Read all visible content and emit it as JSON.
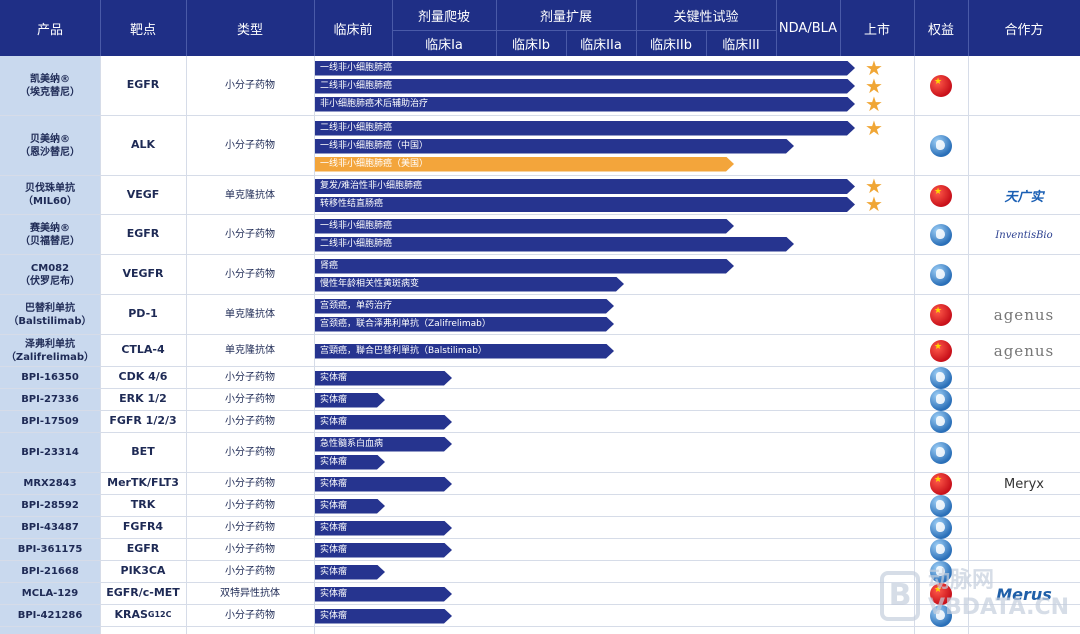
{
  "header": {
    "product": "产品",
    "target": "靶点",
    "type": "类型",
    "preclinical": "临床前",
    "dose_escalation": "剂量爬坡",
    "dose_expansion": "剂量扩展",
    "pivotal": "关键性试验",
    "phase_1a": "临床Ia",
    "phase_1b": "临床Ib",
    "phase_2a": "临床IIa",
    "phase_2b": "临床IIb",
    "phase_3": "临床III",
    "nda": "NDA/BLA",
    "launch": "上市",
    "rights": "权益",
    "partner": "合作方"
  },
  "rows": [
    {
      "product": "凯美纳®\n（埃克替尼）",
      "target": "EGFR",
      "type": "小分子药物",
      "bars": [
        {
          "label": "一线非小细胞肺癌",
          "stage": "launch"
        },
        {
          "label": "二线非小细胞肺癌",
          "stage": "launch"
        },
        {
          "label": "非小细胞肺癌术后辅助治疗",
          "stage": "launch"
        }
      ],
      "rights": "cn",
      "partner": ""
    },
    {
      "product": "贝美纳®\n（恩沙替尼）",
      "target": "ALK",
      "type": "小分子药物",
      "bars": [
        {
          "label": "二线非小细胞肺癌",
          "stage": "launch"
        },
        {
          "label": "一线非小细胞肺癌（中国）",
          "stage": "nda"
        },
        {
          "label": "一线非小细胞肺癌（美国）",
          "stage": "phase3",
          "color": "orange"
        }
      ],
      "rights": "global",
      "partner": ""
    },
    {
      "product": "贝伐珠单抗\n（MIL60）",
      "target": "VEGF",
      "type": "单克隆抗体",
      "bars": [
        {
          "label": "复发/难治性非小细胞肺癌",
          "stage": "launch"
        },
        {
          "label": "转移性结直肠癌",
          "stage": "launch"
        }
      ],
      "rights": "cn",
      "partner": "天广实"
    },
    {
      "product": "赛美纳®\n（贝福替尼）",
      "target": "EGFR",
      "type": "小分子药物",
      "bars": [
        {
          "label": "一线非小细胞肺癌",
          "stage": "phase3"
        },
        {
          "label": "二线非小细胞肺癌",
          "stage": "nda"
        }
      ],
      "rights": "global",
      "partner": "InventisBio"
    },
    {
      "product": "CM082\n（伏罗尼布）",
      "target": "VEGFR",
      "type": "小分子药物",
      "bars": [
        {
          "label": "肾癌",
          "stage": "phase3"
        },
        {
          "label": "慢性年龄相关性黄斑病变",
          "stage": "phase2b"
        }
      ],
      "rights": "global",
      "partner": ""
    },
    {
      "product": "巴替利单抗\n（Balstilimab）",
      "target": "PD-1",
      "type": "单克隆抗体",
      "bars": [
        {
          "label": "宫颈癌，单药治疗",
          "stage": "phase2a"
        },
        {
          "label": "宫颈癌，联合泽弗利单抗（Zalifrelimab）",
          "stage": "phase2a"
        }
      ],
      "rights": "cn",
      "partner": "agenus"
    },
    {
      "product": "泽弗利单抗\n（Zalifrelimab）",
      "target": "CTLA-4",
      "type": "单克隆抗体",
      "bars": [
        {
          "label": "宫頸癌，聯合巴替利單抗（Balstilimab）",
          "stage": "phase2a"
        }
      ],
      "rights": "cn",
      "partner": "agenus"
    },
    {
      "product": "BPI-16350",
      "target": "CDK 4/6",
      "type": "小分子药物",
      "bars": [
        {
          "label": "实体瘤",
          "stage": "phase1b"
        }
      ],
      "rights": "global",
      "partner": ""
    },
    {
      "product": "BPI-27336",
      "target": "ERK 1/2",
      "type": "小分子药物",
      "bars": [
        {
          "label": "实体瘤",
          "stage": "phase1a"
        }
      ],
      "rights": "global",
      "partner": ""
    },
    {
      "product": "BPI-17509",
      "target": "FGFR 1/2/3",
      "type": "小分子药物",
      "bars": [
        {
          "label": "实体瘤",
          "stage": "phase1b"
        }
      ],
      "rights": "global",
      "partner": ""
    },
    {
      "product": "BPI-23314",
      "target": "BET",
      "type": "小分子药物",
      "bars": [
        {
          "label": "急性髓系白血病",
          "stage": "phase1b"
        },
        {
          "label": "实体瘤",
          "stage": "phase1a"
        }
      ],
      "rights": "global",
      "partner": ""
    },
    {
      "product": "MRX2843",
      "target": "MerTK/FLT3",
      "type": "小分子药物",
      "bars": [
        {
          "label": "实体瘤",
          "stage": "phase1b"
        }
      ],
      "rights": "cn",
      "partner": "Meryx"
    },
    {
      "product": "BPI-28592",
      "target": "TRK",
      "type": "小分子药物",
      "bars": [
        {
          "label": "实体瘤",
          "stage": "phase1a"
        }
      ],
      "rights": "global",
      "partner": ""
    },
    {
      "product": "BPI-43487",
      "target": "FGFR4",
      "type": "小分子药物",
      "bars": [
        {
          "label": "实体瘤",
          "stage": "phase1b"
        }
      ],
      "rights": "global",
      "partner": ""
    },
    {
      "product": "BPI-361175",
      "target": "EGFR",
      "type": "小分子药物",
      "bars": [
        {
          "label": "实体瘤",
          "stage": "phase1b"
        }
      ],
      "rights": "global",
      "partner": ""
    },
    {
      "product": "BPI-21668",
      "target": "PIK3CA",
      "type": "小分子药物",
      "bars": [
        {
          "label": "实体瘤",
          "stage": "phase1a"
        }
      ],
      "rights": "global",
      "partner": ""
    },
    {
      "product": "MCLA-129",
      "target": "EGFR/c-MET",
      "type": "双特异性抗体",
      "bars": [
        {
          "label": "实体瘤",
          "stage": "phase1b"
        }
      ],
      "rights": "cn",
      "partner": "Merus"
    },
    {
      "product": "BPI-421286",
      "target": "KRAS",
      "target_sup": "G12C",
      "type": "小分子药物",
      "bars": [
        {
          "label": "实体瘤",
          "stage": "phase1b"
        }
      ],
      "rights": "global",
      "partner": ""
    }
  ],
  "watermark": "动脉网\nVBDATA.CN"
}
